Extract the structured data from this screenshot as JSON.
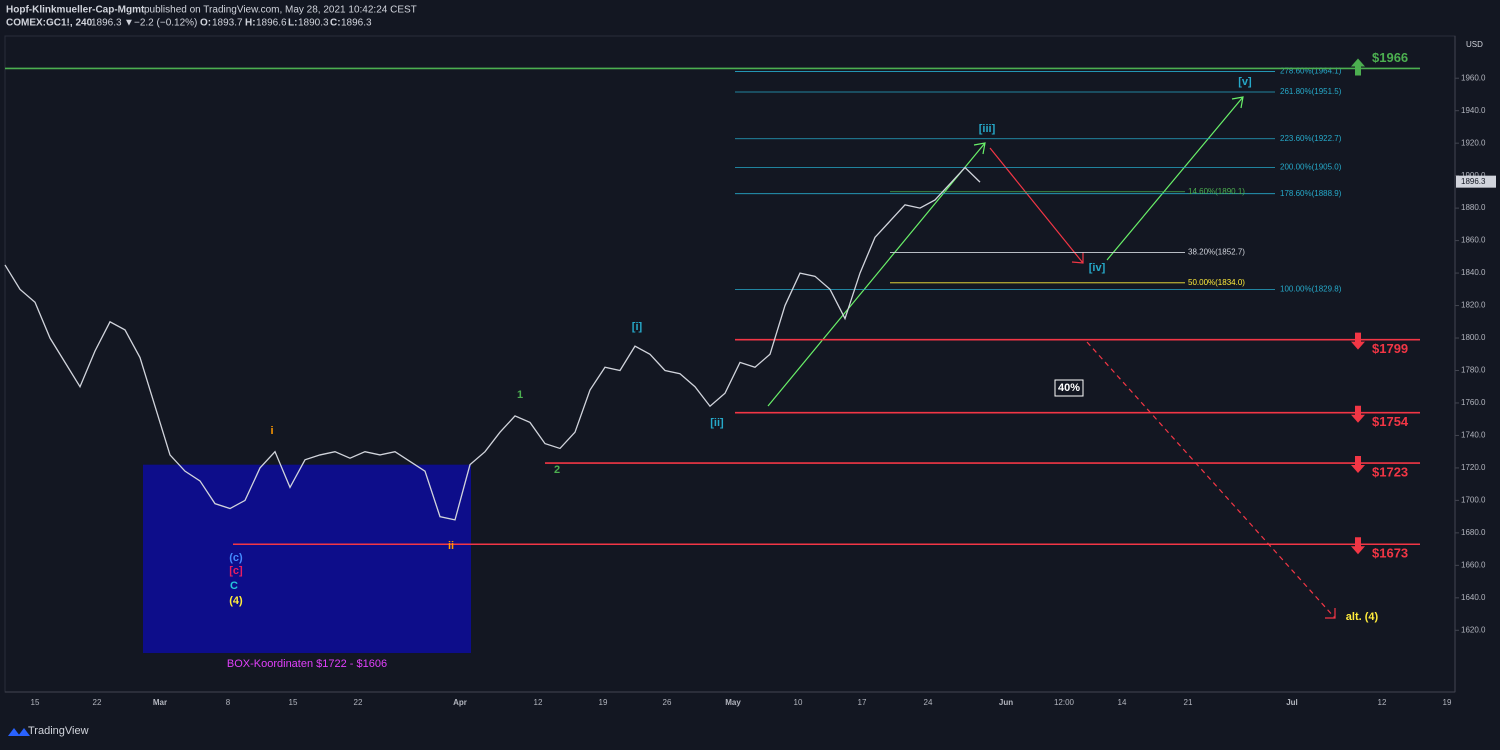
{
  "header": {
    "author": "Hopf-Klinkmueller-Cap-Mgmt",
    "published": "published on TradingView.com, May 28, 2021 10:42:24 CEST",
    "symbol": "COMEX:GC1!, 240",
    "last": 1896.3,
    "arrow": "▼",
    "change": "−2.2 (−0.12%)",
    "open_label": "O:",
    "open": 1893.7,
    "high_label": "H:",
    "high": 1896.6,
    "low_label": "L:",
    "low": 1890.3,
    "close_label": "C:",
    "close": 1896.3
  },
  "footer": {
    "brand": "TradingView"
  },
  "chart_data": {
    "type": "line",
    "currency": "USD",
    "color": "#d1d4dc",
    "grid": false,
    "values": [
      1845,
      1830,
      1822,
      1800,
      1785,
      1770,
      1792,
      1810,
      1805,
      1788,
      1758,
      1728,
      1718,
      1712,
      1698,
      1695,
      1700,
      1720,
      1730,
      1708,
      1725,
      1728,
      1730,
      1726,
      1730,
      1728,
      1730,
      1724,
      1718,
      1690,
      1688,
      1722,
      1730,
      1742,
      1752,
      1748,
      1735,
      1732,
      1742,
      1768,
      1782,
      1780,
      1795,
      1790,
      1780,
      1778,
      1770,
      1758,
      1766,
      1785,
      1782,
      1790,
      1820,
      1840,
      1838,
      1830,
      1812,
      1840,
      1862,
      1872,
      1882,
      1880,
      1885,
      1895,
      1905,
      1896
    ],
    "last_price": 1896.3,
    "ylim": [
      1582,
      1986
    ],
    "yticks": [
      {
        "value": 1620,
        "label": "1620.0"
      },
      {
        "value": 1640,
        "label": "1640.0"
      },
      {
        "value": 1660,
        "label": "1660.0"
      },
      {
        "value": 1680,
        "label": "1680.0"
      },
      {
        "value": 1700,
        "label": "1700.0"
      },
      {
        "value": 1720,
        "label": "1720.0"
      },
      {
        "value": 1740,
        "label": "1740.0"
      },
      {
        "value": 1760,
        "label": "1760.0"
      },
      {
        "value": 1780,
        "label": "1780.0"
      },
      {
        "value": 1800,
        "label": "1800.0"
      },
      {
        "value": 1820,
        "label": "1820.0"
      },
      {
        "value": 1840,
        "label": "1840.0"
      },
      {
        "value": 1860,
        "label": "1860.0"
      },
      {
        "value": 1880,
        "label": "1880.0"
      },
      {
        "value": 1900,
        "label": "1900.0"
      },
      {
        "value": 1920,
        "label": "1920.0"
      },
      {
        "value": 1940,
        "label": "1940.0"
      },
      {
        "value": 1960,
        "label": "1960.0"
      }
    ],
    "x_labels": [
      "15",
      "22",
      "Mar",
      "8",
      "15",
      "22",
      "Apr",
      "12",
      "19",
      "26",
      "May",
      "10",
      "17",
      "24",
      "Jun",
      "12:00",
      "14",
      "21",
      "Jul",
      "12",
      "19"
    ],
    "levels": [
      {
        "label": "$1966",
        "value": 1966,
        "color": "#4caf50",
        "direction": "up"
      },
      {
        "label": "$1799",
        "value": 1799,
        "color": "#f23645",
        "direction": "down"
      },
      {
        "label": "$1754",
        "value": 1754,
        "color": "#f23645",
        "direction": "down"
      },
      {
        "label": "$1723",
        "value": 1723,
        "color": "#f23645",
        "direction": "down"
      },
      {
        "label": "$1673",
        "value": 1673,
        "color": "#f23645",
        "direction": "down"
      }
    ],
    "fib_extensions": {
      "color": "#26a9c9",
      "levels": [
        {
          "label": "278.60%(1964.1)",
          "value": 1964.1
        },
        {
          "label": "261.80%(1951.5)",
          "value": 1951.5
        },
        {
          "label": "223.60%(1922.7)",
          "value": 1922.7
        },
        {
          "label": "200.00%(1905.0)",
          "value": 1905.0
        },
        {
          "label": "178.60%(1888.9)",
          "value": 1888.9
        },
        {
          "label": "100.00%(1829.8)",
          "value": 1829.8
        }
      ]
    },
    "fib_retracements": [
      {
        "label": "14.60%(1890.1)",
        "value": 1890.1,
        "color": "#4caf50"
      },
      {
        "label": "38.20%(1852.7)",
        "value": 1852.7,
        "color": "#d1d4dc"
      },
      {
        "label": "50.00%(1834.0)",
        "value": 1834.0,
        "color": "#ffeb3b"
      }
    ],
    "box": {
      "label": "BOX-Koordinaten $1722 - $1606",
      "top": 1722,
      "bottom": 1606,
      "color": "#0d0d8a",
      "label_color": "#e040fb"
    },
    "annotations": [
      {
        "text": "[i]",
        "color": "#26a9c9"
      },
      {
        "text": "[ii]",
        "color": "#26a9c9"
      },
      {
        "text": "[iii]",
        "color": "#26a9c9"
      },
      {
        "text": "[iv]",
        "color": "#26a9c9"
      },
      {
        "text": "[v]",
        "color": "#26a9c9"
      },
      {
        "text": "1",
        "color": "#4caf50"
      },
      {
        "text": "2",
        "color": "#4caf50"
      },
      {
        "text": "i",
        "color": "#ff9800"
      },
      {
        "text": "ii",
        "color": "#ff9800"
      },
      {
        "text": "(c)",
        "color": "#448aff"
      },
      {
        "text": "[c]",
        "color": "#e91e63"
      },
      {
        "text": "C",
        "color": "#26c6da"
      },
      {
        "text": "(4)",
        "color": "#ffeb3b"
      },
      {
        "text": "alt. (4)",
        "color": "#ffeb3b"
      },
      {
        "text": "40%",
        "color": "#ffffff"
      }
    ]
  }
}
